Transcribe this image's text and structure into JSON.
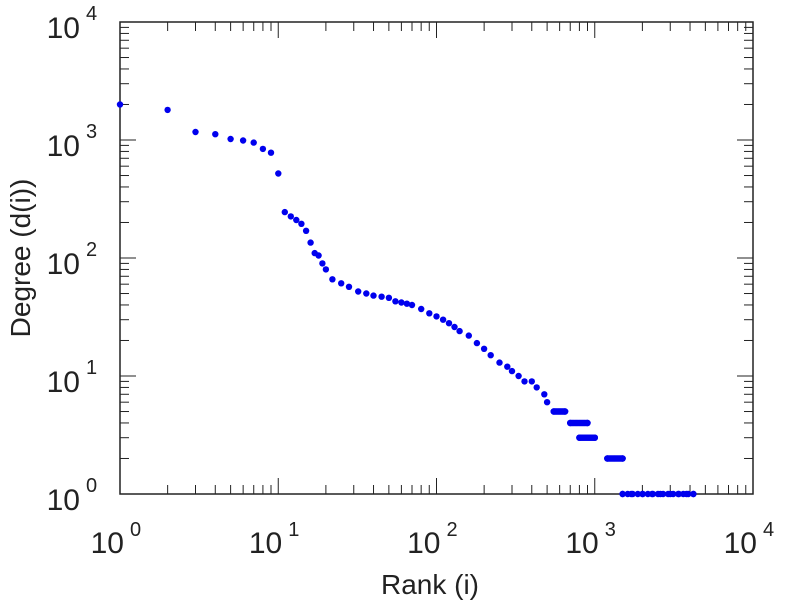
{
  "chart_data": {
    "type": "scatter",
    "title": "",
    "xlabel": "Rank (i)",
    "ylabel": "Degree (d(i))",
    "xscale": "log",
    "yscale": "log",
    "xlim": [
      1,
      10000
    ],
    "ylim": [
      1,
      10000
    ],
    "grid": false,
    "point_color": "#0000ee",
    "xticks": [
      {
        "base": "10",
        "exp": "0",
        "value": 1
      },
      {
        "base": "10",
        "exp": "1",
        "value": 10
      },
      {
        "base": "10",
        "exp": "2",
        "value": 100
      },
      {
        "base": "10",
        "exp": "3",
        "value": 1000
      },
      {
        "base": "10",
        "exp": "4",
        "value": 10000
      }
    ],
    "yticks": [
      {
        "base": "10",
        "exp": "0",
        "value": 1
      },
      {
        "base": "10",
        "exp": "1",
        "value": 10
      },
      {
        "base": "10",
        "exp": "2",
        "value": 100
      },
      {
        "base": "10",
        "exp": "3",
        "value": 1000
      },
      {
        "base": "10",
        "exp": "4",
        "value": 10000
      }
    ],
    "points": [
      [
        1,
        2000
      ],
      [
        2,
        1800
      ],
      [
        3,
        1170
      ],
      [
        4,
        1120
      ],
      [
        5,
        1020
      ],
      [
        6,
        990
      ],
      [
        7,
        950
      ],
      [
        8,
        840
      ],
      [
        9,
        780
      ],
      [
        10,
        520
      ],
      [
        11,
        245
      ],
      [
        12,
        225
      ],
      [
        13,
        210
      ],
      [
        14,
        195
      ],
      [
        15,
        170
      ],
      [
        16,
        135
      ],
      [
        17,
        110
      ],
      [
        18,
        105
      ],
      [
        19,
        90
      ],
      [
        20,
        80
      ],
      [
        22,
        66
      ],
      [
        25,
        61
      ],
      [
        28,
        57
      ],
      [
        32,
        52
      ],
      [
        36,
        50
      ],
      [
        40,
        48
      ],
      [
        45,
        47
      ],
      [
        50,
        46
      ],
      [
        55,
        43
      ],
      [
        60,
        42
      ],
      [
        65,
        41
      ],
      [
        70,
        40
      ],
      [
        80,
        37
      ],
      [
        90,
        34
      ],
      [
        100,
        32
      ],
      [
        110,
        30
      ],
      [
        120,
        28
      ],
      [
        130,
        26
      ],
      [
        140,
        24
      ],
      [
        160,
        22
      ],
      [
        180,
        19
      ],
      [
        200,
        17
      ],
      [
        220,
        15
      ],
      [
        250,
        13
      ],
      [
        280,
        12
      ],
      [
        300,
        11
      ],
      [
        330,
        10
      ],
      [
        360,
        9
      ],
      [
        400,
        9
      ],
      [
        430,
        8
      ],
      [
        480,
        7
      ],
      [
        500,
        6
      ],
      [
        550,
        5
      ],
      [
        650,
        5
      ],
      [
        700,
        4
      ],
      [
        900,
        4
      ],
      [
        800,
        3
      ],
      [
        1000,
        3
      ],
      [
        1200,
        2
      ],
      [
        1500,
        2
      ],
      [
        1500,
        1
      ],
      [
        1700,
        1
      ],
      [
        2000,
        1
      ],
      [
        2300,
        1
      ],
      [
        2600,
        1
      ],
      [
        3000,
        1
      ],
      [
        3400,
        1
      ],
      [
        3800,
        1
      ],
      [
        4200,
        1
      ]
    ]
  }
}
